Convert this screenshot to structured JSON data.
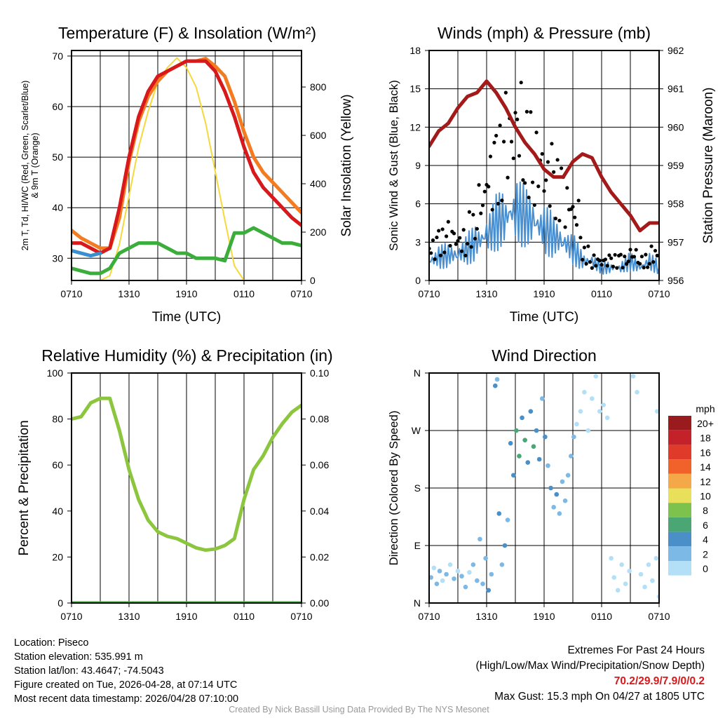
{
  "colors": {
    "temp": "#d7191c",
    "dew": "#3aad3a",
    "temp9m": "#f47c20",
    "hiwc": "#3a8fd0",
    "solar": "#f5d93a",
    "wind": "#4a90d0",
    "gust": "#000000",
    "pressure": "#a31a1a",
    "rh": "#8cc63f",
    "precip": "#3aad3a",
    "extremes": "#d7191c"
  },
  "chart_data": [
    {
      "type": "line",
      "title": "Temperature (F) & Insolation (W/m²)",
      "xlabel": "Time (UTC)",
      "ylabel": "2m T, Td, HI/WC (Red, Green, Scarlet/Blue)",
      "ylabel2": "& 9m T (Orange)",
      "y2label": "Solar Insolation (Yellow)",
      "xticks": [
        "0710",
        "1310",
        "1910",
        "0110",
        "0710"
      ],
      "ylim": [
        25.6,
        71.1
      ],
      "y2lim": [
        0,
        951
      ],
      "yticks": [
        30,
        40,
        50,
        60,
        70
      ],
      "y2ticks": [
        0,
        200,
        400,
        600,
        800
      ],
      "series": [
        {
          "name": "Solar Insolation",
          "axis": "right",
          "color": "#f5d93a",
          "values": [
            0,
            0,
            0,
            0,
            20,
            150,
            350,
            550,
            700,
            820,
            880,
            920,
            880,
            800,
            650,
            450,
            250,
            60,
            0,
            0,
            0,
            0,
            0,
            0,
            0
          ]
        },
        {
          "name": "9m T",
          "color": "#f47c20",
          "values": [
            35.5,
            34,
            33,
            32,
            32,
            38,
            49,
            57,
            62,
            65,
            67,
            68,
            69,
            69,
            69.5,
            68,
            66,
            61,
            55,
            50,
            47,
            45,
            43,
            41,
            39
          ]
        },
        {
          "name": "2m T",
          "color": "#d7191c",
          "values": [
            33,
            33,
            32,
            31,
            32,
            40,
            50,
            58,
            63,
            66,
            67,
            68,
            69,
            69,
            69,
            67,
            63,
            58,
            52,
            47,
            44,
            42,
            40,
            38,
            36.5
          ]
        },
        {
          "name": "Td",
          "color": "#3aad3a",
          "values": [
            28,
            27.5,
            27,
            27,
            28,
            31,
            32,
            33,
            33,
            33,
            32,
            31,
            31,
            30,
            30,
            30,
            29.5,
            35,
            35,
            36,
            35,
            34,
            33,
            33,
            32.5
          ]
        },
        {
          "name": "HI/WC",
          "color": "#3a8fd0",
          "values": [
            31.5,
            31,
            30.5,
            31
          ]
        }
      ]
    },
    {
      "type": "line",
      "title": "Winds (mph) & Pressure (mb)",
      "xlabel": "Time (UTC)",
      "ylabel": "Sonic Wind & Gust (Blue, Black)",
      "y2label": "Station Pressure (Maroon)",
      "xticks": [
        "0710",
        "1310",
        "1910",
        "0110",
        "0710"
      ],
      "ylim": [
        0,
        18
      ],
      "y2lim": [
        956,
        962
      ],
      "yticks": [
        0,
        3,
        6,
        9,
        12,
        15,
        18
      ],
      "y2ticks": [
        956,
        957,
        958,
        959,
        960,
        961,
        962
      ],
      "series": [
        {
          "name": "Sonic Wind",
          "color": "#4a90d0",
          "values": [
            1.5,
            1.8,
            2,
            2,
            2.5,
            3,
            3.5,
            4.5,
            5,
            5.5,
            5,
            4.5,
            4,
            3.5,
            3,
            2.5,
            1.5,
            1.5,
            1,
            1,
            1,
            1.5,
            1,
            1.5,
            1
          ]
        },
        {
          "name": "Gust",
          "color": "#000000",
          "values": [
            2.5,
            3,
            3.5,
            3,
            4,
            6,
            8,
            9,
            11,
            12,
            10,
            9,
            8,
            7,
            6,
            5,
            2,
            1.5,
            1.5,
            1.5,
            1.5,
            2,
            1.5,
            2,
            2
          ]
        },
        {
          "name": "Station Pressure",
          "axis": "right",
          "color": "#a31a1a",
          "values": [
            959.5,
            959.9,
            960.1,
            960.5,
            960.8,
            960.9,
            961.2,
            960.9,
            960.5,
            960,
            959.6,
            959.3,
            958.9,
            958.7,
            958.7,
            959.1,
            959.3,
            959.2,
            958.7,
            958.3,
            958,
            957.7,
            957.3,
            957.5,
            957.5
          ]
        }
      ]
    },
    {
      "type": "line",
      "title": "Relative Humidity (%) & Precipitation (in)",
      "ylabel": "Percent & Precipitation",
      "xticks": [
        "0710",
        "1310",
        "1910",
        "0110",
        "0710"
      ],
      "ylim": [
        0,
        100
      ],
      "y2lim": [
        0,
        0.1
      ],
      "yticks": [
        0,
        20,
        40,
        60,
        80,
        100
      ],
      "y2ticks": [
        "0.00",
        "0.02",
        "0.04",
        "0.06",
        "0.08",
        "0.10"
      ],
      "series": [
        {
          "name": "Relative Humidity",
          "color": "#8cc63f",
          "values": [
            80,
            81,
            87,
            89,
            89,
            75,
            58,
            45,
            36,
            31,
            29,
            28,
            26,
            24,
            23,
            23.5,
            25,
            28,
            45,
            58,
            64,
            72,
            78,
            83,
            86
          ]
        },
        {
          "name": "Precipitation",
          "axis": "right",
          "color": "#3aad3a",
          "values": [
            0,
            0,
            0,
            0,
            0,
            0,
            0,
            0,
            0,
            0,
            0,
            0,
            0,
            0,
            0,
            0,
            0,
            0,
            0,
            0,
            0,
            0,
            0,
            0,
            0
          ]
        }
      ]
    },
    {
      "type": "scatter",
      "title": "Wind Direction",
      "ylabel": "Direction (Colored By Speed)",
      "xticks": [
        "0710",
        "1310",
        "1910",
        "0110",
        "0710"
      ],
      "ylim": [
        0,
        360
      ],
      "yticks": [
        "N",
        "E",
        "S",
        "W",
        "N"
      ],
      "legend": {
        "title": "mph",
        "labels": [
          "20+",
          "18",
          "16",
          "14",
          "12",
          "10",
          "8",
          "6",
          "4",
          "2",
          "0"
        ],
        "colors": [
          "#9a1b1e",
          "#c3222a",
          "#e03a2a",
          "#f0622a",
          "#f5a847",
          "#e8e05a",
          "#7dc24c",
          "#4aa672",
          "#4a8fc8",
          "#7cb9e6",
          "#b3e0f7"
        ]
      },
      "points": [
        [
          0.2,
          40,
          2
        ],
        [
          0.5,
          55,
          1.5
        ],
        [
          0.8,
          30,
          2
        ],
        [
          1.1,
          50,
          2
        ],
        [
          1.4,
          35,
          1.5
        ],
        [
          1.8,
          45,
          2
        ],
        [
          2.2,
          60,
          1.5
        ],
        [
          2.6,
          38,
          2
        ],
        [
          3,
          50,
          1.5
        ],
        [
          3.4,
          42,
          2
        ],
        [
          3.8,
          25,
          2
        ],
        [
          4.2,
          48,
          1.5
        ],
        [
          4.6,
          60,
          2
        ],
        [
          5,
          35,
          2
        ],
        [
          5.3,
          100,
          3
        ],
        [
          5.6,
          30,
          3
        ],
        [
          5.9,
          70,
          3.5
        ],
        [
          6.2,
          20,
          4
        ],
        [
          6.5,
          45,
          3
        ],
        [
          6.9,
          340,
          4
        ],
        [
          7.1,
          350,
          3.5
        ],
        [
          7.3,
          140,
          4
        ],
        [
          7.6,
          60,
          3
        ],
        [
          7.9,
          90,
          4
        ],
        [
          8.2,
          130,
          3.5
        ],
        [
          8.5,
          250,
          4
        ],
        [
          8.8,
          200,
          5
        ],
        [
          9.1,
          270,
          6
        ],
        [
          9.4,
          230,
          7
        ],
        [
          9.7,
          290,
          5
        ],
        [
          10,
          255,
          6
        ],
        [
          10.3,
          220,
          4
        ],
        [
          10.6,
          300,
          5
        ],
        [
          10.9,
          245,
          6
        ],
        [
          11.2,
          270,
          4
        ],
        [
          11.5,
          225,
          5
        ],
        [
          11.8,
          320,
          3
        ],
        [
          12.1,
          260,
          4
        ],
        [
          12.4,
          215,
          3.5
        ],
        [
          12.7,
          180,
          4
        ],
        [
          13,
          150,
          3
        ],
        [
          13.3,
          170,
          4
        ],
        [
          13.6,
          140,
          3.5
        ],
        [
          13.9,
          190,
          3
        ],
        [
          14.2,
          160,
          3.5
        ],
        [
          14.5,
          200,
          2
        ],
        [
          14.8,
          230,
          2
        ],
        [
          15.1,
          260,
          2
        ],
        [
          15.4,
          280,
          1.5
        ],
        [
          15.8,
          300,
          1.5
        ],
        [
          16.2,
          330,
          1
        ],
        [
          16.6,
          270,
          1
        ],
        [
          17,
          320,
          1
        ],
        [
          17.4,
          355,
          0.5
        ],
        [
          17.8,
          300,
          1
        ],
        [
          18.2,
          310,
          1.5
        ],
        [
          18.6,
          290,
          1
        ],
        [
          19,
          70,
          1
        ],
        [
          19.3,
          40,
          0.5
        ],
        [
          19.7,
          20,
          1
        ],
        [
          20.1,
          60,
          1
        ],
        [
          20.5,
          30,
          1.5
        ],
        [
          20.9,
          50,
          1
        ],
        [
          21.3,
          355,
          1
        ],
        [
          21.7,
          330,
          1
        ],
        [
          22.1,
          45,
          1
        ],
        [
          22.5,
          25,
          1.5
        ],
        [
          22.9,
          60,
          1
        ],
        [
          23.3,
          35,
          1
        ],
        [
          23.7,
          70,
          0.5
        ],
        [
          24,
          10,
          1
        ],
        [
          23.8,
          300,
          1
        ]
      ]
    }
  ],
  "footer_left": [
    "Location: Piseco",
    "Station elevation: 535.991 m",
    "Station lat/lon: 43.4647; -74.5043",
    "Figure created on Tue, 2026-04-28, at 07:14 UTC",
    "Most recent data timestamp: 2026/04/28 07:10:00"
  ],
  "footer_right": {
    "title": "Extremes For Past 24 Hours",
    "subtitle": "(High/Low/Max Wind/Precipitation/Snow Depth)",
    "values": "70.2/29.9/7.9/0/0.2",
    "gust": "Max Gust: 15.3 mph On 04/27 at 1805 UTC"
  },
  "credit": "Created By Nick Bassill Using Data Provided By The NYS Mesonet"
}
